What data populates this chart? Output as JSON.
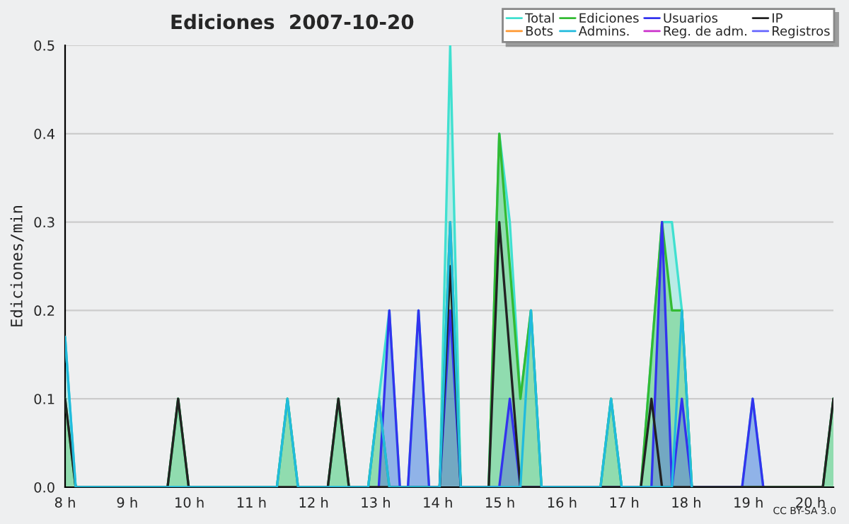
{
  "chart_data": {
    "type": "area",
    "title": "Ediciones  2007-10-20",
    "ylabel": "Ediciones/min",
    "annotations": [
      "CC BY-SA 3.0"
    ],
    "xlim": [
      8,
      20.37
    ],
    "ylim": [
      0,
      0.5
    ],
    "xticks": [
      {
        "value": 8,
        "label": "8 h"
      },
      {
        "value": 9,
        "label": "9 h"
      },
      {
        "value": 10,
        "label": "10 h"
      },
      {
        "value": 11,
        "label": "11 h"
      },
      {
        "value": 12,
        "label": "12 h"
      },
      {
        "value": 13,
        "label": "13 h"
      },
      {
        "value": 14,
        "label": "14 h"
      },
      {
        "value": 15,
        "label": "15 h"
      },
      {
        "value": 16,
        "label": "16 h"
      },
      {
        "value": 17,
        "label": "17 h"
      },
      {
        "value": 18,
        "label": "18 h"
      },
      {
        "value": 19,
        "label": "19 h"
      },
      {
        "value": 20,
        "label": "20 h"
      }
    ],
    "yticks": [
      {
        "value": 0,
        "label": "0.0"
      },
      {
        "value": 0.1,
        "label": "0.1"
      },
      {
        "value": 0.2,
        "label": "0.2"
      },
      {
        "value": 0.3,
        "label": "0.3"
      },
      {
        "value": 0.4,
        "label": "0.4"
      },
      {
        "value": 0.5,
        "label": "0.5"
      }
    ],
    "grid": "y",
    "legend": "top right",
    "series": [
      {
        "name": "Total",
        "color": "#40e0d0",
        "x": [
          8.0,
          8.17,
          9.65,
          9.82,
          9.99,
          11.41,
          11.58,
          11.75,
          12.23,
          12.4,
          12.57,
          12.88,
          13.05,
          13.22,
          13.39,
          13.52,
          13.69,
          13.86,
          14.03,
          14.2,
          14.37,
          14.82,
          14.99,
          15.16,
          15.33,
          15.5,
          15.67,
          16.62,
          16.79,
          16.96,
          17.27,
          17.61,
          17.77,
          17.93,
          18.09,
          18.9,
          19.07,
          19.24,
          20.2,
          20.37
        ],
        "values": [
          0.17,
          0,
          0,
          0.1,
          0,
          0,
          0.1,
          0,
          0,
          0.1,
          0,
          0,
          0.1,
          0.2,
          0,
          0,
          0.2,
          0,
          0,
          0.5,
          0,
          0,
          0.4,
          0.3,
          0.1,
          0.2,
          0,
          0,
          0.1,
          0,
          0,
          0.3,
          0.3,
          0.2,
          0,
          0,
          0.1,
          0,
          0,
          0.1
        ]
      },
      {
        "name": "Ediciones",
        "color": "#33bb33",
        "x": [
          8.0,
          8.17,
          9.65,
          9.82,
          9.99,
          11.41,
          11.58,
          11.75,
          12.23,
          12.4,
          12.57,
          12.88,
          13.05,
          13.22,
          14.03,
          14.2,
          14.37,
          14.82,
          14.99,
          15.16,
          15.33,
          15.5,
          15.67,
          16.62,
          16.79,
          16.96,
          17.27,
          17.61,
          17.77,
          17.93,
          18.09,
          20.2,
          20.37
        ],
        "values": [
          0.1,
          0,
          0,
          0.1,
          0,
          0,
          0.1,
          0,
          0,
          0.1,
          0,
          0,
          0.1,
          0,
          0,
          0.3,
          0,
          0,
          0.4,
          0.25,
          0.1,
          0.2,
          0,
          0,
          0.1,
          0,
          0,
          0.3,
          0.2,
          0.2,
          0,
          0,
          0.1
        ]
      },
      {
        "name": "Usuarios",
        "color": "#3333ee",
        "x": [
          13.05,
          13.22,
          13.39,
          13.52,
          13.69,
          13.86,
          14.03,
          14.2,
          14.37,
          14.99,
          15.16,
          15.33,
          17.44,
          17.61,
          17.77,
          17.93,
          18.09,
          18.9,
          19.07,
          19.24
        ],
        "values": [
          0,
          0.2,
          0,
          0,
          0.2,
          0,
          0,
          0.2,
          0,
          0,
          0.1,
          0,
          0,
          0.3,
          0,
          0.1,
          0,
          0,
          0.1,
          0
        ]
      },
      {
        "name": "IP",
        "color": "#222222",
        "type": "line",
        "x": [
          8.0,
          8.17,
          9.65,
          9.82,
          9.99,
          12.23,
          12.4,
          12.57,
          14.03,
          14.2,
          14.37,
          14.82,
          14.99,
          15.33,
          17.27,
          17.44,
          17.61,
          20.2,
          20.37
        ],
        "values": [
          0.1,
          0,
          0,
          0.1,
          0,
          0,
          0.1,
          0,
          0,
          0.25,
          0,
          0,
          0.3,
          0,
          0,
          0.1,
          0,
          0,
          0.1
        ]
      },
      {
        "name": "Bots",
        "color": "#ff9933",
        "type": "line"
      },
      {
        "name": "Admins.",
        "color": "#22bbdd",
        "type": "line",
        "x": [
          8.0,
          8.17,
          11.41,
          11.58,
          11.75,
          12.88,
          13.05,
          13.22,
          14.03,
          14.2,
          14.37,
          15.33,
          15.5,
          15.67,
          16.62,
          16.79,
          16.96,
          17.77,
          17.93,
          18.09
        ],
        "values": [
          0.17,
          0,
          0,
          0.1,
          0,
          0,
          0.1,
          0,
          0,
          0.3,
          0,
          0,
          0.2,
          0,
          0,
          0.1,
          0,
          0,
          0.2,
          0
        ]
      },
      {
        "name": "Reg. de adm.",
        "color": "#cc33cc",
        "type": "line"
      },
      {
        "name": "Registros",
        "color": "#6666ff",
        "type": "line"
      }
    ]
  }
}
